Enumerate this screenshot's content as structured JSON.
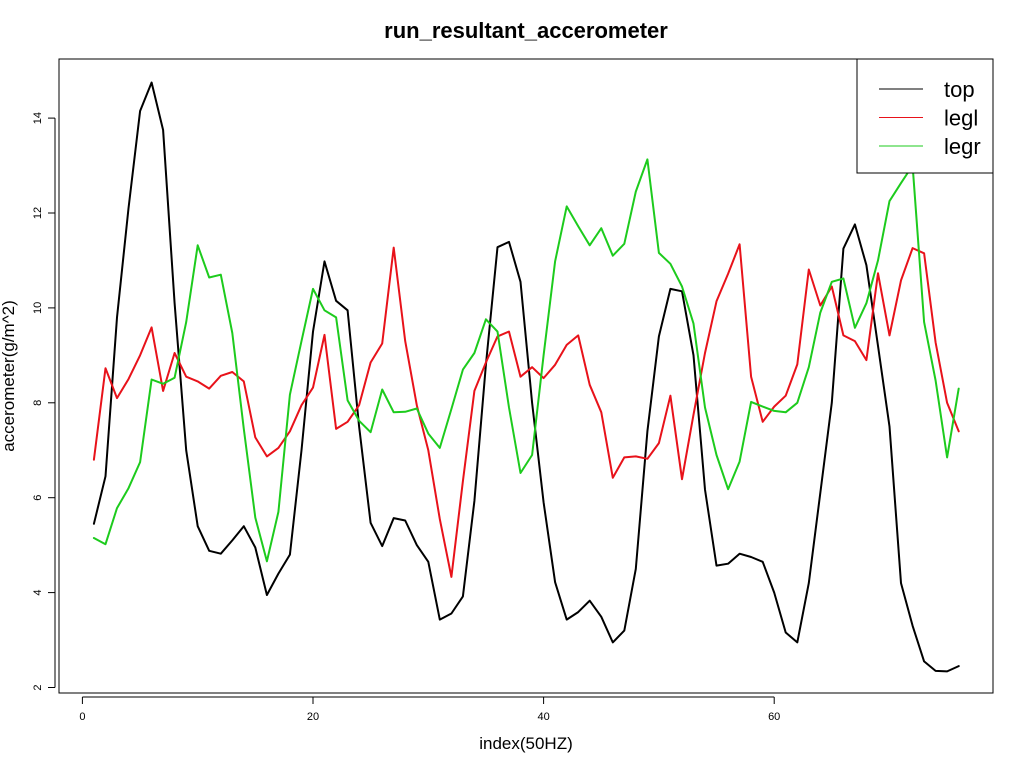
{
  "chart_data": {
    "type": "line",
    "title": "run_resultant_accerometer",
    "xlabel": "index(50HZ)",
    "ylabel": "accerometer(g/m^2)",
    "xlim": [
      1,
      76
    ],
    "ylim": [
      2,
      15
    ],
    "xticks": [
      0,
      20,
      40,
      60
    ],
    "yticks": [
      2,
      4,
      6,
      8,
      10,
      12,
      14
    ],
    "grid": false,
    "legend_position": "top-right",
    "series": [
      {
        "name": "top",
        "color": "#000000",
        "values": [
          5.45,
          6.45,
          9.8,
          12.1,
          14.15,
          14.75,
          13.75,
          10.1,
          7.0,
          5.4,
          4.88,
          4.82,
          5.1,
          5.4,
          4.95,
          3.95,
          4.4,
          4.8,
          7.0,
          9.5,
          10.98,
          10.15,
          9.95,
          7.5,
          5.47,
          4.98,
          5.57,
          5.52,
          5.0,
          4.65,
          3.43,
          3.56,
          3.92,
          5.93,
          8.8,
          11.28,
          11.39,
          10.55,
          8.0,
          5.9,
          4.22,
          3.43,
          3.59,
          3.83,
          3.49,
          2.95,
          3.2,
          4.5,
          7.4,
          9.4,
          10.4,
          10.35,
          9.0,
          6.17,
          4.57,
          4.61,
          4.82,
          4.75,
          4.65,
          4.0,
          3.16,
          2.95,
          4.2,
          6.1,
          8.0,
          11.25,
          11.76,
          10.9,
          9.2,
          7.5,
          4.2,
          3.3,
          2.55,
          2.35,
          2.34,
          2.45
        ]
      },
      {
        "name": "legl",
        "color": "#e8121a",
        "values": [
          6.8,
          8.73,
          8.1,
          8.5,
          9.0,
          9.59,
          8.25,
          9.05,
          8.55,
          8.45,
          8.3,
          8.57,
          8.65,
          8.45,
          7.27,
          6.87,
          7.05,
          7.4,
          7.95,
          8.32,
          9.43,
          7.45,
          7.6,
          7.95,
          8.85,
          9.25,
          11.27,
          9.3,
          7.95,
          7.0,
          5.55,
          4.33,
          6.35,
          8.25,
          8.85,
          9.4,
          9.5,
          8.55,
          8.75,
          8.52,
          8.8,
          9.22,
          9.42,
          8.38,
          7.8,
          6.42,
          6.85,
          6.87,
          6.82,
          7.15,
          8.15,
          6.39,
          7.75,
          9.05,
          10.14,
          10.72,
          11.34,
          8.55,
          7.6,
          7.92,
          8.15,
          8.81,
          10.81,
          10.05,
          10.45,
          9.42,
          9.3,
          8.9,
          10.73,
          9.42,
          10.58,
          11.26,
          11.15,
          9.27,
          8.0,
          7.4
        ]
      },
      {
        "name": "legr",
        "color": "#1dcb1d",
        "values": [
          5.15,
          5.02,
          5.78,
          6.2,
          6.75,
          8.49,
          8.4,
          8.53,
          9.7,
          11.32,
          10.64,
          10.7,
          9.47,
          7.45,
          5.58,
          4.66,
          5.7,
          8.17,
          9.3,
          10.4,
          9.95,
          9.8,
          8.05,
          7.62,
          7.38,
          8.28,
          7.8,
          7.81,
          7.88,
          7.35,
          7.05,
          7.87,
          8.7,
          9.05,
          9.76,
          9.5,
          7.9,
          6.52,
          6.9,
          9.0,
          10.98,
          12.14,
          11.72,
          11.32,
          11.68,
          11.1,
          11.35,
          12.45,
          13.13,
          11.16,
          10.93,
          10.45,
          9.67,
          7.9,
          6.9,
          6.18,
          6.76,
          8.02,
          7.92,
          7.83,
          7.8,
          8.0,
          8.75,
          9.9,
          10.55,
          10.62,
          9.58,
          10.1,
          11.0,
          12.25,
          12.63,
          13.0,
          9.7,
          8.47,
          6.85,
          8.3
        ]
      }
    ]
  }
}
